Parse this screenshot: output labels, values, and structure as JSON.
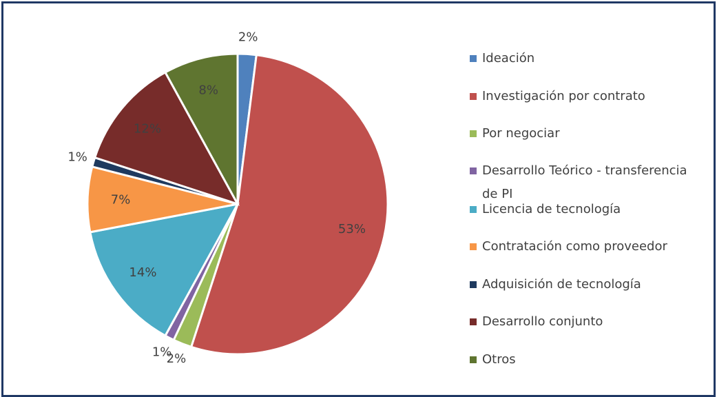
{
  "chart_data": {
    "type": "pie",
    "categories": [
      "Ideación",
      "Investigación por contrato",
      "Por negociar",
      "Desarrollo Teórico - transferencia de PI",
      "Licencia de tecnología",
      "Contratación como proveedor",
      "Adquisición de tecnología",
      "Desarrollo conjunto",
      "Otros"
    ],
    "values": [
      2,
      53,
      2,
      1,
      14,
      7,
      1,
      12,
      8
    ],
    "value_labels": [
      "2%",
      "53%",
      "2%",
      "1%",
      "14%",
      "7%",
      "1%",
      "12%",
      "8%"
    ],
    "colors": [
      "#4f81bd",
      "#c0504d",
      "#9bbb59",
      "#8064a2",
      "#4bacc6",
      "#f79646",
      "#1f3a5f",
      "#772c2a",
      "#5f7530"
    ],
    "legend": "right"
  }
}
